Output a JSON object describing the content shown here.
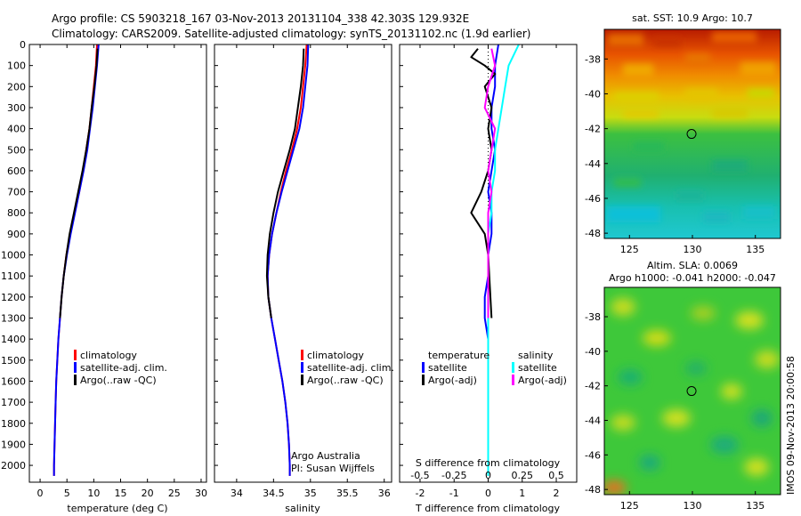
{
  "header": {
    "line1": "Argo profile: CS 5903218_167 03-Nov-2013 20131104_338 42.303S 129.932E",
    "line2": "Climatology: CARS2009. Satellite-adjusted climatology: synTS_20131102.nc (1.9d earlier)"
  },
  "watermark": "IMOS 09-Nov-2013 20:00:58",
  "colors": {
    "climatology": "#ff0000",
    "satellite": "#0000ff",
    "argo": "#000000",
    "salinity_satellite": "#00ffff",
    "salinity_argo": "#ff00ff"
  },
  "chart_data": [
    {
      "type": "line",
      "name": "temperature-profile",
      "xlabel": "temperature (deg C)",
      "ylabel": "",
      "xlim": [
        -2,
        31
      ],
      "ylim": [
        2080,
        0
      ],
      "xticks": [
        "0",
        "5",
        "10",
        "15",
        "20",
        "25",
        "30"
      ],
      "xtick_values": [
        0,
        5,
        10,
        15,
        20,
        25,
        30
      ],
      "yticks": [
        "0",
        "100",
        "200",
        "300",
        "400",
        "500",
        "600",
        "700",
        "800",
        "900",
        "1000",
        "1100",
        "1200",
        "1300",
        "1400",
        "1500",
        "1600",
        "1700",
        "1800",
        "1900",
        "2000"
      ],
      "ytick_values": [
        0,
        100,
        200,
        300,
        400,
        500,
        600,
        700,
        800,
        900,
        1000,
        1100,
        1200,
        1300,
        1400,
        1500,
        1600,
        1700,
        1800,
        1900,
        2000
      ],
      "legend": [
        "climatology",
        "satellite-adj. clim.",
        "Argo(..raw -QC)"
      ],
      "series": [
        {
          "name": "climatology",
          "color": "#ff0000",
          "points": [
            [
              10.6,
              0
            ],
            [
              10.4,
              100
            ],
            [
              10.0,
              200
            ],
            [
              9.6,
              300
            ],
            [
              9.2,
              400
            ],
            [
              8.6,
              500
            ],
            [
              8.0,
              600
            ],
            [
              7.3,
              700
            ],
            [
              6.4,
              800
            ],
            [
              5.6,
              900
            ],
            [
              4.9,
              1000
            ],
            [
              4.4,
              1100
            ],
            [
              4.0,
              1200
            ],
            [
              3.7,
              1300
            ],
            [
              3.4,
              1400
            ],
            [
              3.2,
              1500
            ],
            [
              3.0,
              1600
            ],
            [
              2.9,
              1700
            ],
            [
              2.8,
              1800
            ],
            [
              2.7,
              1900
            ],
            [
              2.6,
              2000
            ],
            [
              2.6,
              2050
            ]
          ]
        },
        {
          "name": "satellite",
          "color": "#0000ff",
          "points": [
            [
              10.9,
              0
            ],
            [
              10.6,
              100
            ],
            [
              10.2,
              200
            ],
            [
              9.8,
              300
            ],
            [
              9.3,
              400
            ],
            [
              8.8,
              500
            ],
            [
              8.1,
              600
            ],
            [
              7.3,
              700
            ],
            [
              6.5,
              800
            ],
            [
              5.7,
              900
            ],
            [
              5.0,
              1000
            ],
            [
              4.4,
              1100
            ],
            [
              4.0,
              1200
            ],
            [
              3.7,
              1300
            ],
            [
              3.4,
              1400
            ],
            [
              3.2,
              1500
            ],
            [
              3.0,
              1600
            ],
            [
              2.9,
              1700
            ],
            [
              2.8,
              1800
            ],
            [
              2.7,
              1900
            ],
            [
              2.6,
              2000
            ],
            [
              2.6,
              2050
            ]
          ]
        },
        {
          "name": "argo",
          "color": "#000000",
          "points": [
            [
              10.7,
              20
            ],
            [
              10.5,
              100
            ],
            [
              10.1,
              200
            ],
            [
              9.6,
              300
            ],
            [
              9.2,
              400
            ],
            [
              8.6,
              500
            ],
            [
              7.9,
              600
            ],
            [
              7.1,
              700
            ],
            [
              6.3,
              800
            ],
            [
              5.5,
              900
            ],
            [
              4.9,
              1000
            ],
            [
              4.4,
              1100
            ],
            [
              4.0,
              1200
            ],
            [
              3.7,
              1300
            ]
          ]
        }
      ]
    },
    {
      "type": "line",
      "name": "salinity-profile",
      "xlabel": "salinity",
      "xlim": [
        33.7,
        36.1
      ],
      "ylim": [
        2080,
        0
      ],
      "xticks": [
        "34",
        "34.5",
        "35",
        "35.5",
        "36"
      ],
      "xtick_values": [
        34,
        34.5,
        35,
        35.5,
        36
      ],
      "legend": [
        "climatology",
        "satellite-adj. clim.",
        "Argo(..raw -QC)"
      ],
      "annotation": [
        "Argo Australia",
        "PI: Susan Wijffels"
      ],
      "series": [
        {
          "name": "climatology",
          "color": "#ff0000",
          "points": [
            [
              34.95,
              0
            ],
            [
              34.93,
              100
            ],
            [
              34.9,
              200
            ],
            [
              34.87,
              300
            ],
            [
              34.82,
              400
            ],
            [
              34.75,
              500
            ],
            [
              34.67,
              600
            ],
            [
              34.6,
              700
            ],
            [
              34.54,
              800
            ],
            [
              34.48,
              900
            ],
            [
              34.44,
              1000
            ],
            [
              34.42,
              1100
            ],
            [
              34.43,
              1200
            ],
            [
              34.47,
              1300
            ],
            [
              34.52,
              1400
            ],
            [
              34.57,
              1500
            ],
            [
              34.62,
              1600
            ],
            [
              34.66,
              1700
            ],
            [
              34.69,
              1800
            ],
            [
              34.71,
              1900
            ],
            [
              34.72,
              2000
            ],
            [
              34.72,
              2050
            ]
          ]
        },
        {
          "name": "satellite",
          "color": "#0000ff",
          "points": [
            [
              34.97,
              0
            ],
            [
              34.96,
              100
            ],
            [
              34.93,
              200
            ],
            [
              34.9,
              300
            ],
            [
              34.85,
              400
            ],
            [
              34.77,
              500
            ],
            [
              34.69,
              600
            ],
            [
              34.61,
              700
            ],
            [
              34.54,
              800
            ],
            [
              34.48,
              900
            ],
            [
              34.44,
              1000
            ],
            [
              34.42,
              1100
            ],
            [
              34.43,
              1200
            ],
            [
              34.47,
              1300
            ],
            [
              34.52,
              1400
            ],
            [
              34.57,
              1500
            ],
            [
              34.62,
              1600
            ],
            [
              34.66,
              1700
            ],
            [
              34.69,
              1800
            ],
            [
              34.71,
              1900
            ],
            [
              34.72,
              2000
            ],
            [
              34.72,
              2050
            ]
          ]
        },
        {
          "name": "argo",
          "color": "#000000",
          "points": [
            [
              34.91,
              20
            ],
            [
              34.9,
              100
            ],
            [
              34.87,
              200
            ],
            [
              34.83,
              300
            ],
            [
              34.79,
              400
            ],
            [
              34.72,
              500
            ],
            [
              34.64,
              600
            ],
            [
              34.56,
              700
            ],
            [
              34.5,
              800
            ],
            [
              34.45,
              900
            ],
            [
              34.42,
              1000
            ],
            [
              34.41,
              1100
            ],
            [
              34.43,
              1200
            ],
            [
              34.47,
              1300
            ]
          ]
        }
      ]
    },
    {
      "type": "line",
      "name": "difference-profile",
      "xlabel": "T difference from climatology",
      "top_axis_label": "S difference from climatology",
      "xlim": [
        -2.6,
        2.6
      ],
      "ylim": [
        2080,
        0
      ],
      "xticks": [
        "-2",
        "-1",
        "0",
        "1",
        "2"
      ],
      "xtick_values": [
        -2,
        -1,
        0,
        1,
        2
      ],
      "top_ticks": [
        "-0.5",
        "-0.25",
        "0",
        "0.25",
        "0.5"
      ],
      "top_tick_values": [
        -2,
        -1,
        0,
        1,
        2
      ],
      "legend_temperature": [
        "temperature",
        "satellite",
        "Argo(-adj)"
      ],
      "legend_salinity": [
        "salinity",
        "satellite",
        "Argo(-adj)"
      ],
      "series": [
        {
          "name": "temperature satellite",
          "color": "#0000ff",
          "points": [
            [
              0.3,
              0
            ],
            [
              0.2,
              100
            ],
            [
              0.2,
              200
            ],
            [
              0.1,
              300
            ],
            [
              0.1,
              400
            ],
            [
              0.2,
              500
            ],
            [
              0.1,
              600
            ],
            [
              0.0,
              700
            ],
            [
              0.1,
              800
            ],
            [
              0.1,
              900
            ],
            [
              0.0,
              1000
            ],
            [
              0.0,
              1100
            ],
            [
              -0.1,
              1200
            ],
            [
              -0.1,
              1300
            ],
            [
              0.0,
              1400
            ],
            [
              0.0,
              1500
            ],
            [
              0.0,
              1600
            ]
          ]
        },
        {
          "name": "temperature argo",
          "color": "#000000",
          "points": [
            [
              -0.3,
              20
            ],
            [
              -0.5,
              60
            ],
            [
              -0.1,
              100
            ],
            [
              0.2,
              140
            ],
            [
              -0.1,
              200
            ],
            [
              0.1,
              300
            ],
            [
              0.0,
              400
            ],
            [
              0.1,
              500
            ],
            [
              0.0,
              600
            ],
            [
              -0.2,
              700
            ],
            [
              -0.5,
              800
            ],
            [
              -0.1,
              900
            ],
            [
              0.0,
              1000
            ],
            [
              0.1,
              1300
            ]
          ]
        },
        {
          "name": "salinity satellite",
          "color": "#00ffff",
          "points": [
            [
              0.9,
              0
            ],
            [
              0.6,
              100
            ],
            [
              0.5,
              200
            ],
            [
              0.4,
              300
            ],
            [
              0.3,
              400
            ],
            [
              0.2,
              500
            ],
            [
              0.2,
              600
            ],
            [
              0.1,
              700
            ],
            [
              0.1,
              800
            ],
            [
              0.0,
              900
            ],
            [
              0.0,
              1000
            ],
            [
              0.0,
              1200
            ],
            [
              0.0,
              1400
            ],
            [
              0.0,
              1600
            ],
            [
              0.0,
              1800
            ],
            [
              0.0,
              2000
            ],
            [
              0.0,
              2050
            ]
          ]
        },
        {
          "name": "salinity argo",
          "color": "#ff00ff",
          "points": [
            [
              0.1,
              20
            ],
            [
              0.2,
              100
            ],
            [
              0.0,
              200
            ],
            [
              -0.1,
              300
            ],
            [
              0.2,
              400
            ],
            [
              0.1,
              500
            ],
            [
              0.0,
              600
            ],
            [
              0.1,
              700
            ],
            [
              0.0,
              800
            ],
            [
              0.0,
              900
            ],
            [
              0.0,
              1000
            ],
            [
              0.0,
              1100
            ],
            [
              0.0,
              1200
            ],
            [
              0.0,
              1300
            ]
          ]
        }
      ]
    },
    {
      "type": "heatmap",
      "name": "sst-map",
      "title": "sat. SST: 10.9  Argo: 10.7",
      "xlim": [
        123,
        137
      ],
      "ylim": [
        -48.3,
        -36.3
      ],
      "xticks": [
        "125",
        "130",
        "135"
      ],
      "xtick_values": [
        125,
        130,
        135
      ],
      "yticks": [
        "-38",
        "-40",
        "-42",
        "-44",
        "-46",
        "-48"
      ],
      "ytick_values": [
        -38,
        -40,
        -42,
        -44,
        -46,
        -48
      ],
      "marker": {
        "lon": 129.932,
        "lat": -42.303
      }
    },
    {
      "type": "heatmap",
      "name": "sla-map",
      "title": "Altim. SLA: 0.0069",
      "subtitle": "Argo h1000: -0.041  h2000: -0.047",
      "xlim": [
        123,
        137
      ],
      "ylim": [
        -48.3,
        -36.3
      ],
      "xticks": [
        "125",
        "130",
        "135"
      ],
      "xtick_values": [
        125,
        130,
        135
      ],
      "yticks": [
        "-38",
        "-40",
        "-42",
        "-44",
        "-46",
        "-48"
      ],
      "ytick_values": [
        -38,
        -40,
        -42,
        -44,
        -46,
        -48
      ],
      "marker": {
        "lon": 129.932,
        "lat": -42.303
      }
    }
  ]
}
